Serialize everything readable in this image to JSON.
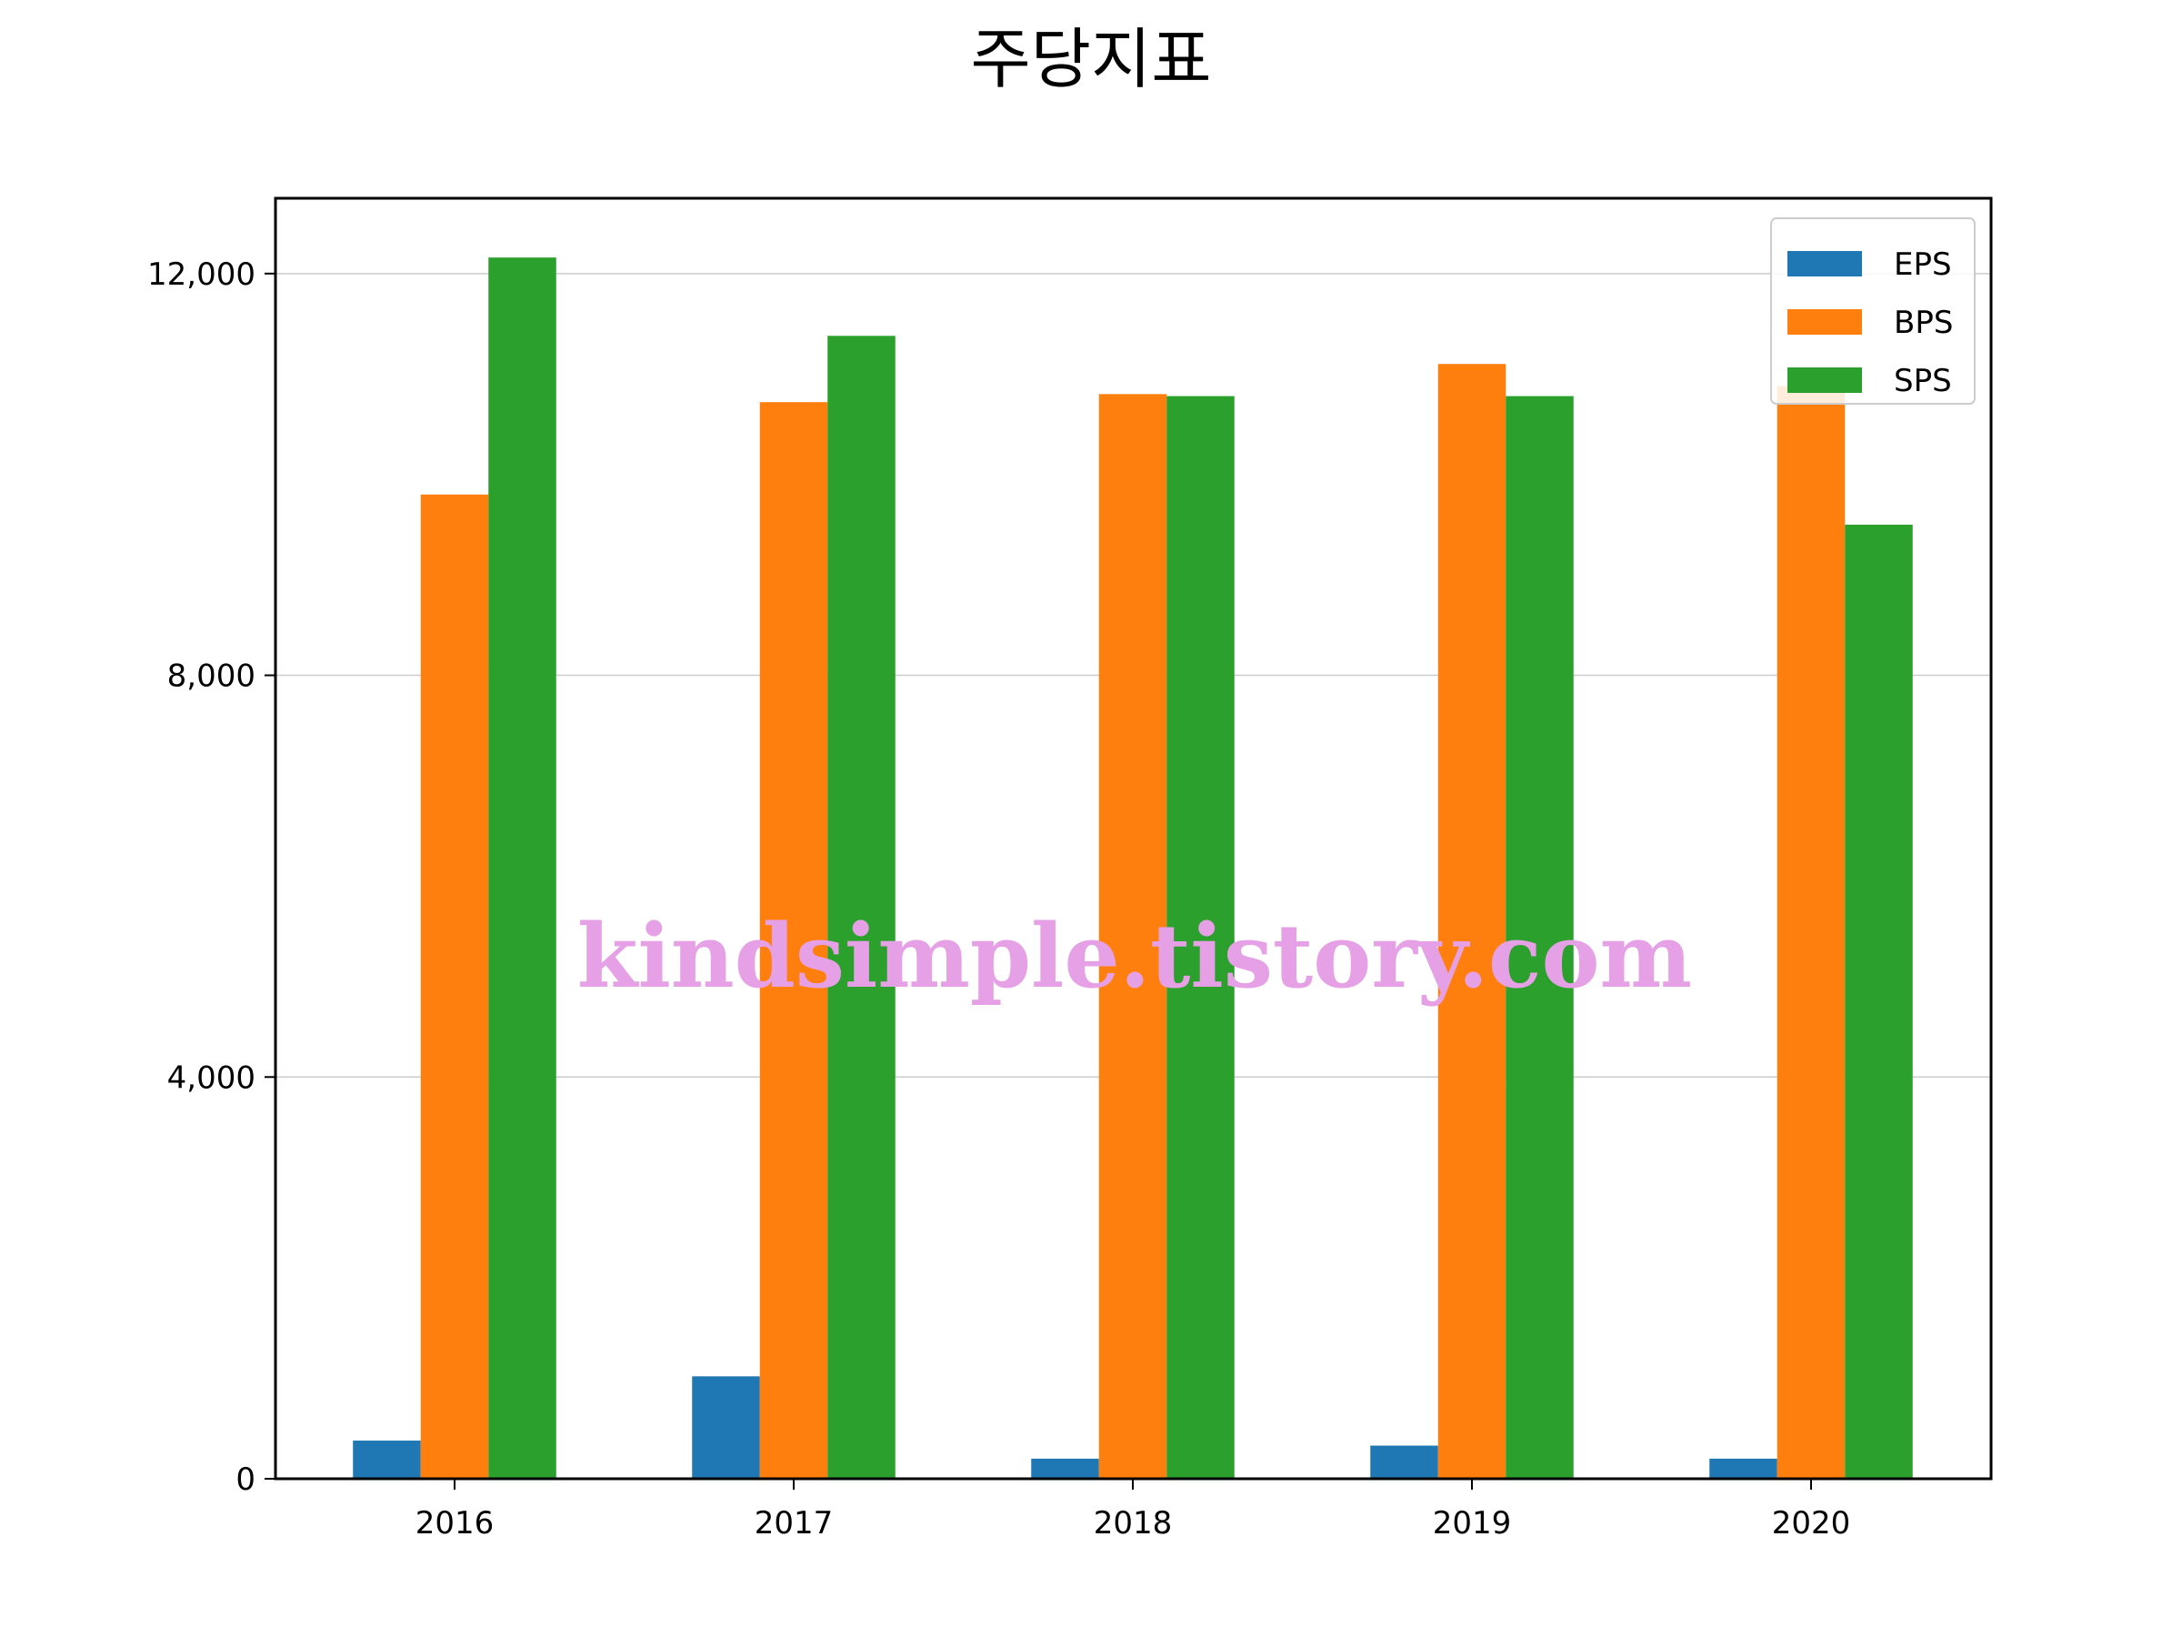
{
  "chart_data": {
    "type": "bar",
    "title": "주당지표",
    "xlabel": "",
    "ylabel": "",
    "categories": [
      "2016",
      "2017",
      "2018",
      "2019",
      "2020"
    ],
    "series": [
      {
        "name": "EPS",
        "color": "#1f77b4",
        "values": [
          380,
          1020,
          200,
          330,
          200
        ]
      },
      {
        "name": "BPS",
        "color": "#ff7f0e",
        "values": [
          9800,
          10720,
          10800,
          11100,
          10880
        ]
      },
      {
        "name": "SPS",
        "color": "#2ca02c",
        "values": [
          12160,
          11380,
          10780,
          10780,
          9500
        ]
      }
    ],
    "ylim": [
      0,
      12750
    ],
    "yticks": [
      0,
      4000,
      8000,
      12000
    ],
    "ytick_labels": [
      "0",
      "4,000",
      "8,000",
      "12,000"
    ],
    "grid": "y",
    "legend_position": "top-right",
    "watermark": "kindsimple.tistory.com"
  }
}
